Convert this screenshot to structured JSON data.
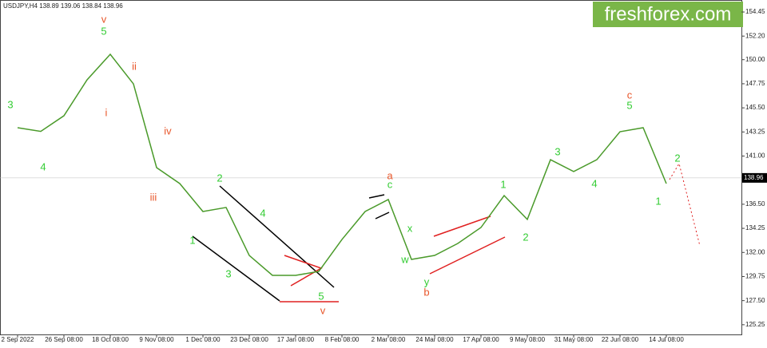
{
  "chart_data": {
    "type": "line",
    "header": "USDJPY,H4 138.89 139.06 138.84 138.96",
    "logo": "freshforex.com",
    "categories": [
      "2 Sep 2022",
      null,
      "26 Sep 08:00",
      null,
      "18 Oct 08:00",
      null,
      "9 Nov 08:00",
      null,
      "1 Dec 08:00",
      null,
      "23 Dec 08:00",
      null,
      "17 Jan 08:00",
      null,
      "8 Feb 08:00",
      null,
      "2 Mar 08:00",
      null,
      "24 Mar 08:00",
      null,
      "17 Apr 08:00",
      null,
      "9 May 08:00",
      null,
      "31 May 08:00",
      null,
      "22 Jun 08:00",
      null,
      "14 Jul 08:00"
    ],
    "series": [
      {
        "name": "USDJPY",
        "color": "#4a9a2a",
        "values": [
          143.65,
          143.3,
          144.76,
          148.12,
          150.5,
          147.74,
          139.92,
          138.43,
          135.82,
          136.2,
          131.72,
          129.86,
          129.86,
          130.23,
          133.21,
          135.82,
          136.94,
          131.35,
          131.72,
          132.84,
          134.33,
          137.31,
          135.08,
          140.66,
          139.55,
          140.66,
          143.27,
          143.65,
          138.43
        ]
      }
    ],
    "last_price": 138.96,
    "ylim": [
      124.27,
      155.57
    ],
    "yticks": [
      154.45,
      {
        "value": 152.2,
        "label": "152.20"
      },
      {
        "value": 150,
        "label": "150.00"
      },
      147.75,
      {
        "value": 145.5,
        "label": "145.50"
      },
      143.25,
      {
        "value": 141,
        "label": "141.00"
      },
      138.75,
      {
        "value": 136.5,
        "label": "136.50"
      },
      134.25,
      {
        "value": 132,
        "label": "132.00"
      },
      129.75,
      {
        "value": 127.5,
        "label": "127.50"
      },
      125.25
    ],
    "annotations": [
      {
        "text": "3",
        "color": "#33cc33"
      },
      {
        "text": "4",
        "color": "#33cc33"
      },
      {
        "text": "v",
        "color": "#e8562a"
      },
      {
        "text": "5",
        "color": "#33cc33"
      },
      {
        "text": "ii",
        "color": "#e8562a"
      },
      {
        "text": "i",
        "color": "#e8562a"
      },
      {
        "text": "iv",
        "color": "#e8562a"
      },
      {
        "text": "iii",
        "color": "#e8562a"
      },
      {
        "text": "2",
        "color": "#33cc33"
      },
      {
        "text": "1",
        "color": "#33cc33"
      },
      {
        "text": "4",
        "color": "#33cc33"
      },
      {
        "text": "3",
        "color": "#33cc33"
      },
      {
        "text": "5",
        "color": "#33cc33"
      },
      {
        "text": "v",
        "color": "#e8562a"
      },
      {
        "text": "a",
        "color": "#e8562a"
      },
      {
        "text": "c",
        "color": "#33cc33"
      },
      {
        "text": "x",
        "color": "#33cc33"
      },
      {
        "text": "w",
        "color": "#33cc33"
      },
      {
        "text": "y",
        "color": "#33cc33"
      },
      {
        "text": "b",
        "color": "#e8562a"
      },
      {
        "text": "1",
        "color": "#33cc33"
      },
      {
        "text": "2",
        "color": "#33cc33"
      },
      {
        "text": "3",
        "color": "#33cc33"
      },
      {
        "text": "4",
        "color": "#33cc33"
      },
      {
        "text": "c",
        "color": "#e8562a"
      },
      {
        "text": "5",
        "color": "#33cc33"
      },
      {
        "text": "2",
        "color": "#33cc33"
      },
      {
        "text": "1",
        "color": "#33cc33"
      }
    ]
  }
}
